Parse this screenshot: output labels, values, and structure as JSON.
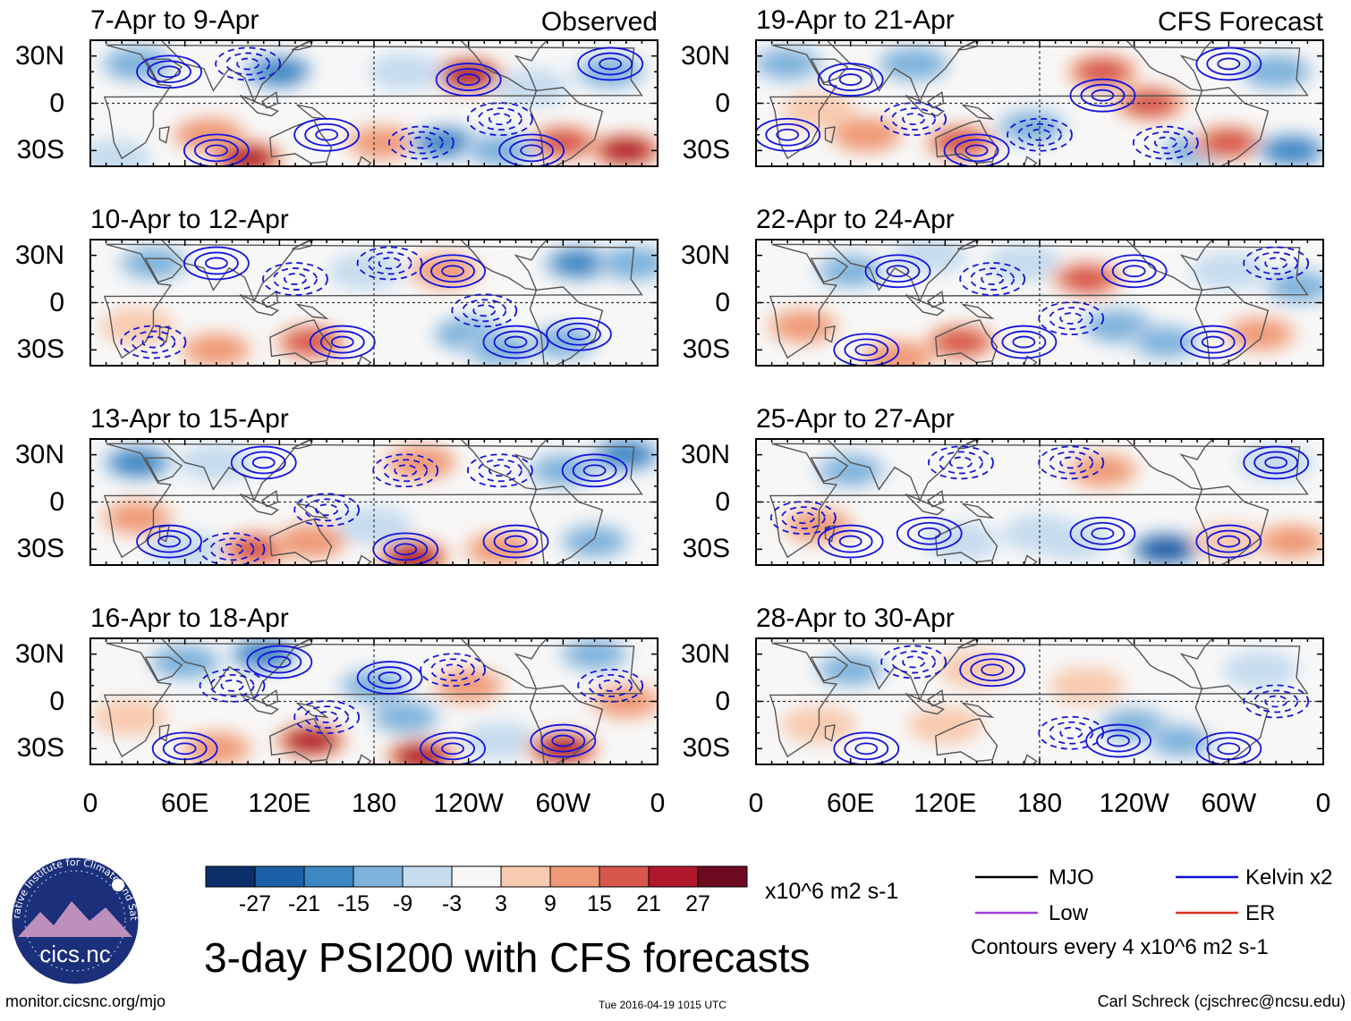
{
  "chart_data": {
    "type": "heatmap",
    "title": "3-day PSI200 with CFS forecasts",
    "variable": "PSI200 anomaly",
    "units": "x10^6 m2 s-1",
    "contour_note": "Contours every 4 x10^6 m2 s-1",
    "x_ticks": [
      "0",
      "60E",
      "120E",
      "180",
      "120W",
      "60W",
      "0"
    ],
    "y_ticks": [
      "30N",
      "0",
      "30S"
    ],
    "xlim_deg_east": [
      0,
      360
    ],
    "ylim_deg": [
      -40,
      40
    ],
    "colorbar": {
      "levels": [
        -27,
        -21,
        -15,
        -9,
        -3,
        3,
        9,
        15,
        21,
        27
      ],
      "labels": [
        "-27",
        "-21",
        "-15",
        "-9",
        "-3",
        "3",
        "9",
        "15",
        "21",
        "27"
      ],
      "colors": [
        "#0b2f6b",
        "#1c5fa6",
        "#3d88c4",
        "#7fb3db",
        "#c6dcef",
        "#f7f7f7",
        "#f8cbb0",
        "#ef9a77",
        "#d7574c",
        "#b2182b",
        "#6d0a22"
      ]
    },
    "legend": [
      {
        "label": "MJO",
        "color": "#000000"
      },
      {
        "label": "Kelvin x2",
        "color": "#1010d8"
      },
      {
        "label": "Low",
        "color": "#a040d8"
      },
      {
        "label": "ER",
        "color": "#d83020"
      }
    ],
    "columns": [
      {
        "heading": "Observed",
        "panels": [
          "7-Apr to 9-Apr",
          "10-Apr to 12-Apr",
          "13-Apr to 15-Apr",
          "16-Apr to 18-Apr"
        ]
      },
      {
        "heading": "CFS Forecast",
        "panels": [
          "19-Apr to 21-Apr",
          "22-Apr to 24-Apr",
          "25-Apr to 27-Apr",
          "28-Apr to 30-Apr"
        ]
      }
    ],
    "anomaly_blobs": [
      [
        [
          [
            120,
            20,
            -24
          ],
          [
            30,
            25,
            -18
          ],
          [
            75,
            -20,
            18
          ],
          [
            185,
            -25,
            14
          ],
          [
            225,
            -25,
            -20
          ],
          [
            240,
            18,
            26
          ],
          [
            300,
            -25,
            22
          ],
          [
            340,
            -30,
            28
          ],
          [
            45,
            0,
            9
          ],
          [
            160,
            10,
            -9
          ],
          [
            280,
            10,
            -12
          ],
          [
            330,
            20,
            -14
          ],
          [
            15,
            -35,
            -12
          ],
          [
            100,
            -35,
            26
          ],
          [
            260,
            -30,
            -14
          ],
          [
            200,
            20,
            -10
          ]
        ],
        [
          [
            40,
            25,
            -14
          ],
          [
            80,
            -30,
            14
          ],
          [
            140,
            -25,
            22
          ],
          [
            175,
            20,
            -12
          ],
          [
            225,
            20,
            14
          ],
          [
            240,
            -20,
            -18
          ],
          [
            310,
            25,
            -20
          ],
          [
            345,
            25,
            -18
          ],
          [
            260,
            -30,
            -14
          ],
          [
            300,
            -25,
            -16
          ],
          [
            30,
            -15,
            12
          ],
          [
            120,
            10,
            9
          ],
          [
            190,
            -10,
            -8
          ],
          [
            100,
            25,
            -9
          ]
        ],
        [
          [
            30,
            25,
            -20
          ],
          [
            80,
            25,
            -12
          ],
          [
            105,
            -30,
            22
          ],
          [
            140,
            -25,
            18
          ],
          [
            210,
            25,
            18
          ],
          [
            205,
            -35,
            28
          ],
          [
            260,
            -30,
            16
          ],
          [
            300,
            20,
            -16
          ],
          [
            340,
            30,
            -20
          ],
          [
            320,
            -25,
            -14
          ],
          [
            30,
            -10,
            14
          ],
          [
            180,
            -15,
            -12
          ],
          [
            250,
            10,
            -8
          ],
          [
            60,
            -30,
            -10
          ]
        ],
        [
          [
            60,
            25,
            -18
          ],
          [
            110,
            30,
            -22
          ],
          [
            140,
            -25,
            26
          ],
          [
            180,
            10,
            -14
          ],
          [
            210,
            -35,
            28
          ],
          [
            240,
            10,
            14
          ],
          [
            260,
            -25,
            -12
          ],
          [
            300,
            -30,
            28
          ],
          [
            320,
            30,
            -16
          ],
          [
            340,
            0,
            14
          ],
          [
            25,
            -10,
            12
          ],
          [
            200,
            -10,
            -16
          ],
          [
            80,
            -30,
            16
          ]
        ]
      ],
      [
        [
          [
            20,
            25,
            -14
          ],
          [
            70,
            -20,
            18
          ],
          [
            100,
            25,
            -18
          ],
          [
            130,
            -25,
            22
          ],
          [
            175,
            -15,
            -14
          ],
          [
            220,
            20,
            22
          ],
          [
            250,
            0,
            20
          ],
          [
            280,
            -30,
            -14
          ],
          [
            300,
            -25,
            24
          ],
          [
            340,
            -30,
            -20
          ],
          [
            330,
            20,
            -18
          ],
          [
            160,
            15,
            9
          ],
          [
            40,
            -5,
            12
          ]
        ],
        [
          [
            60,
            20,
            -14
          ],
          [
            110,
            30,
            -12
          ],
          [
            130,
            -25,
            22
          ],
          [
            170,
            25,
            -10
          ],
          [
            210,
            15,
            24
          ],
          [
            230,
            -15,
            -18
          ],
          [
            260,
            -25,
            -16
          ],
          [
            300,
            20,
            -12
          ],
          [
            320,
            -20,
            16
          ],
          [
            345,
            10,
            -16
          ],
          [
            30,
            -15,
            14
          ],
          [
            90,
            -35,
            18
          ],
          [
            180,
            -5,
            -9
          ]
        ],
        [
          [
            60,
            20,
            -14
          ],
          [
            130,
            -25,
            -12
          ],
          [
            150,
            20,
            -9
          ],
          [
            200,
            -25,
            -10
          ],
          [
            220,
            20,
            14
          ],
          [
            260,
            -30,
            -26
          ],
          [
            300,
            -25,
            12
          ],
          [
            340,
            -25,
            14
          ],
          [
            330,
            25,
            -12
          ],
          [
            40,
            -15,
            14
          ],
          [
            100,
            -5,
            9
          ],
          [
            180,
            -20,
            -10
          ]
        ],
        [
          [
            60,
            20,
            -14
          ],
          [
            140,
            20,
            12
          ],
          [
            210,
            10,
            12
          ],
          [
            240,
            -15,
            -14
          ],
          [
            270,
            -25,
            -16
          ],
          [
            320,
            20,
            -12
          ],
          [
            40,
            -15,
            10
          ],
          [
            120,
            -15,
            10
          ],
          [
            180,
            -20,
            -9
          ],
          [
            300,
            -10,
            9
          ]
        ]
      ]
    ],
    "contour_centers": [
      [
        [
          [
            240,
            15,
            "solid"
          ],
          [
            280,
            -30,
            "solid"
          ],
          [
            80,
            -30,
            "solid"
          ],
          [
            150,
            -20,
            "solid"
          ],
          [
            50,
            20,
            "solid"
          ],
          [
            330,
            25,
            "solid"
          ],
          [
            210,
            -25,
            "dashed"
          ],
          [
            260,
            -10,
            "dashed"
          ],
          [
            100,
            25,
            "dashed"
          ]
        ],
        [
          [
            80,
            25,
            "solid"
          ],
          [
            230,
            20,
            "solid"
          ],
          [
            160,
            -25,
            "solid"
          ],
          [
            270,
            -25,
            "solid"
          ],
          [
            310,
            -20,
            "solid"
          ],
          [
            190,
            25,
            "dashed"
          ],
          [
            130,
            15,
            "dashed"
          ],
          [
            250,
            -5,
            "dashed"
          ],
          [
            40,
            -25,
            "dashed"
          ]
        ],
        [
          [
            110,
            25,
            "solid"
          ],
          [
            200,
            -30,
            "solid"
          ],
          [
            270,
            -25,
            "solid"
          ],
          [
            50,
            -25,
            "solid"
          ],
          [
            320,
            20,
            "solid"
          ],
          [
            200,
            20,
            "dashed"
          ],
          [
            150,
            -5,
            "dashed"
          ],
          [
            90,
            -30,
            "dashed"
          ],
          [
            260,
            20,
            "dashed"
          ]
        ],
        [
          [
            120,
            25,
            "solid"
          ],
          [
            190,
            15,
            "solid"
          ],
          [
            230,
            -30,
            "solid"
          ],
          [
            60,
            -30,
            "solid"
          ],
          [
            300,
            -25,
            "solid"
          ],
          [
            150,
            -10,
            "dashed"
          ],
          [
            230,
            20,
            "dashed"
          ],
          [
            90,
            10,
            "dashed"
          ],
          [
            330,
            10,
            "dashed"
          ]
        ]
      ],
      [
        [
          [
            60,
            15,
            "solid"
          ],
          [
            140,
            -30,
            "solid"
          ],
          [
            220,
            5,
            "solid"
          ],
          [
            300,
            25,
            "solid"
          ],
          [
            20,
            -20,
            "solid"
          ],
          [
            100,
            -10,
            "dashed"
          ],
          [
            180,
            -20,
            "dashed"
          ],
          [
            260,
            -25,
            "dashed"
          ]
        ],
        [
          [
            90,
            20,
            "solid"
          ],
          [
            240,
            20,
            "solid"
          ],
          [
            170,
            -25,
            "solid"
          ],
          [
            290,
            -25,
            "solid"
          ],
          [
            70,
            -30,
            "solid"
          ],
          [
            150,
            15,
            "dashed"
          ],
          [
            200,
            -10,
            "dashed"
          ],
          [
            330,
            25,
            "dashed"
          ]
        ],
        [
          [
            110,
            -20,
            "solid"
          ],
          [
            220,
            -20,
            "solid"
          ],
          [
            300,
            -25,
            "solid"
          ],
          [
            60,
            -25,
            "solid"
          ],
          [
            330,
            25,
            "solid"
          ],
          [
            200,
            25,
            "dashed"
          ],
          [
            130,
            25,
            "dashed"
          ],
          [
            30,
            -10,
            "dashed"
          ]
        ],
        [
          [
            150,
            20,
            "solid"
          ],
          [
            230,
            -25,
            "solid"
          ],
          [
            300,
            -30,
            "solid"
          ],
          [
            70,
            -30,
            "solid"
          ],
          [
            200,
            -20,
            "dashed"
          ],
          [
            100,
            25,
            "dashed"
          ],
          [
            330,
            0,
            "dashed"
          ]
        ]
      ]
    ]
  },
  "footer": {
    "logo_text": "cics.nc",
    "logo_ring_text": "Cooperative Institute for Climate and Satellites",
    "url": "monitor.cicsnc.org/mjo",
    "timestamp": "Tue 2016-04-19 1015 UTC",
    "author": "Carl Schreck (cjschrec@ncsu.edu)"
  }
}
